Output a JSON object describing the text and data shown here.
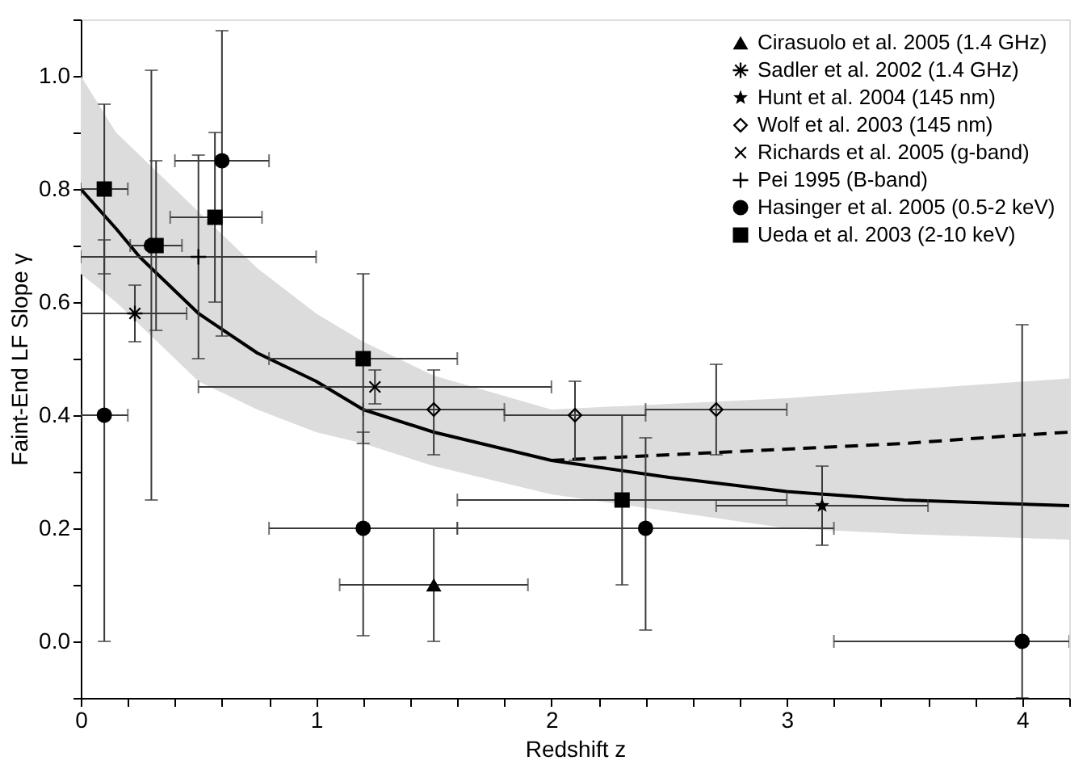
{
  "chart_data": {
    "type": "scatter",
    "xlabel": "Redshift z",
    "ylabel": "Faint-End LF Slope γ",
    "xlim": [
      0,
      4.2
    ],
    "ylim": [
      -0.1,
      1.1
    ],
    "xticks": [
      0,
      {
        "value": 0.2,
        "label": null
      },
      {
        "value": 0.4,
        "label": null
      },
      {
        "value": 0.6,
        "label": null
      },
      {
        "value": 0.8,
        "label": null
      },
      1,
      {
        "value": 1.2,
        "label": null
      },
      {
        "value": 1.4,
        "label": null
      },
      {
        "value": 1.6,
        "label": null
      },
      {
        "value": 1.8,
        "label": null
      },
      2,
      {
        "value": 2.2,
        "label": null
      },
      {
        "value": 2.4,
        "label": null
      },
      {
        "value": 2.6,
        "label": null
      },
      {
        "value": 2.8,
        "label": null
      },
      3,
      {
        "value": 3.2,
        "label": null
      },
      {
        "value": 3.4,
        "label": null
      },
      {
        "value": 3.6,
        "label": null
      },
      {
        "value": 3.8,
        "label": null
      },
      4,
      {
        "value": 4.2,
        "label": null
      }
    ],
    "yticks": [
      {
        "value": -0.1,
        "label": null
      },
      {
        "value": 0,
        "label": "0.0"
      },
      {
        "value": 0.1,
        "label": null
      },
      {
        "value": 0.2,
        "label": "0.2"
      },
      {
        "value": 0.3,
        "label": null
      },
      {
        "value": 0.4,
        "label": "0.4"
      },
      {
        "value": 0.5,
        "label": null
      },
      {
        "value": 0.6,
        "label": "0.6"
      },
      {
        "value": 0.7,
        "label": null
      },
      {
        "value": 0.8,
        "label": "0.8"
      },
      {
        "value": 0.9,
        "label": null
      },
      {
        "value": 1.0,
        "label": "1.0"
      },
      {
        "value": 1.1,
        "label": null
      }
    ],
    "grid": false,
    "legend": "top right",
    "series": [
      {
        "type": "line",
        "color": "#000000",
        "line_style": "solid",
        "marker": "none",
        "x": [
          0,
          0.15,
          0.25,
          0.5,
          0.75,
          1.0,
          1.2,
          1.5,
          2.0,
          2.5,
          3.0,
          3.5,
          4.2
        ],
        "values": [
          0.8,
          0.73,
          0.68,
          0.58,
          0.51,
          0.46,
          0.41,
          0.37,
          0.32,
          0.29,
          0.265,
          0.25,
          0.24
        ],
        "lower": [
          0.65,
          0.6,
          0.56,
          0.46,
          0.41,
          0.37,
          0.35,
          0.31,
          0.26,
          0.23,
          0.2,
          0.19,
          0.18
        ],
        "upper": [
          1.0,
          0.9,
          0.86,
          0.76,
          0.66,
          0.58,
          0.53,
          0.47,
          0.41,
          0.42,
          0.43,
          0.445,
          0.465
        ]
      },
      {
        "type": "line",
        "color": "#000000",
        "line_style": "dashed",
        "marker": "none",
        "x": [
          2.0,
          2.5,
          3.0,
          3.5,
          4.0,
          4.2
        ],
        "values": [
          0.32,
          0.33,
          0.34,
          0.35,
          0.365,
          0.37
        ]
      },
      {
        "name": "Cirasuolo et al. 2005 (1.4 GHz)",
        "type": "scatter",
        "marker": "triangle",
        "color": "#000000",
        "x": [
          1.5
        ],
        "values": [
          0.1
        ],
        "errors": [
          [
            0.0,
            0.2
          ]
        ],
        "xerrors": [
          [
            1.1,
            1.9
          ]
        ]
      },
      {
        "name": "Sadler et al. 2002 (1.4 GHz)",
        "type": "scatter",
        "marker": "asterisk",
        "color": "#000000",
        "x": [
          0.23
        ],
        "values": [
          0.58
        ],
        "errors": [
          [
            0.53,
            0.63
          ]
        ],
        "xerrors": [
          [
            0.0,
            0.45
          ]
        ]
      },
      {
        "name": "Hunt et al. 2004 (145 nm)",
        "type": "scatter",
        "marker": "star",
        "color": "#000000",
        "x": [
          3.15
        ],
        "values": [
          0.24
        ],
        "errors": [
          [
            0.17,
            0.31
          ]
        ],
        "xerrors": [
          [
            2.7,
            3.6
          ]
        ]
      },
      {
        "name": "Wolf et al. 2003 (145 nm)",
        "type": "scatter",
        "marker": "diamond",
        "color": "#000000",
        "x": [
          1.5,
          2.1,
          2.7
        ],
        "values": [
          0.41,
          0.4,
          0.41
        ],
        "errors": [
          [
            0.33,
            0.48
          ],
          [
            0.32,
            0.46
          ],
          [
            0.33,
            0.49
          ]
        ],
        "xerrors": [
          [
            1.2,
            1.8
          ],
          [
            1.8,
            2.4
          ],
          [
            2.4,
            3.0
          ]
        ]
      },
      {
        "name": "Richards et al. 2005 (g-band)",
        "type": "scatter",
        "marker": "x",
        "color": "#000000",
        "x": [
          1.25
        ],
        "values": [
          0.45
        ],
        "errors": [
          [
            0.42,
            0.48
          ]
        ],
        "xerrors": [
          [
            0.5,
            2.0
          ]
        ]
      },
      {
        "name": "Pei 1995 (B-band)",
        "type": "scatter",
        "marker": "plus",
        "color": "#000000",
        "x": [
          0.5
        ],
        "values": [
          0.68
        ],
        "errors": [
          [
            0.5,
            0.86
          ]
        ],
        "xerrors": [
          [
            0.0,
            1.0
          ]
        ]
      },
      {
        "name": "Hasinger et al. 2005 (0.5-2 keV)",
        "type": "scatter",
        "marker": "circle",
        "color": "#000000",
        "x": [
          0.1,
          0.3,
          0.6,
          1.2,
          2.4,
          4.0
        ],
        "values": [
          0.4,
          0.7,
          0.85,
          0.2,
          0.2,
          0.0
        ],
        "errors": [
          [
            0.0,
            0.71
          ],
          [
            0.25,
            1.01
          ],
          [
            0.54,
            1.08
          ],
          [
            0.01,
            0.37
          ],
          [
            0.02,
            0.36
          ],
          [
            -0.1,
            0.56
          ]
        ],
        "xerrors": [
          [
            0.0,
            0.2
          ],
          null,
          [
            0.4,
            0.8
          ],
          [
            0.8,
            1.6
          ],
          [
            1.6,
            3.2
          ],
          [
            3.2,
            4.2
          ]
        ]
      },
      {
        "name": "Ueda et al. 2003 (2-10 keV)",
        "type": "scatter",
        "marker": "square",
        "color": "#000000",
        "x": [
          0.1,
          0.32,
          0.57,
          1.2,
          2.3
        ],
        "values": [
          0.8,
          0.7,
          0.75,
          0.5,
          0.25
        ],
        "errors": [
          [
            0.65,
            0.95
          ],
          [
            0.55,
            0.85
          ],
          [
            0.6,
            0.9
          ],
          [
            0.35,
            0.65
          ],
          [
            0.1,
            0.4
          ]
        ],
        "xerrors": [
          [
            0.0,
            0.2
          ],
          [
            0.21,
            0.43
          ],
          [
            0.38,
            0.77
          ],
          [
            0.8,
            1.6
          ],
          [
            1.6,
            3.0
          ]
        ]
      }
    ]
  }
}
